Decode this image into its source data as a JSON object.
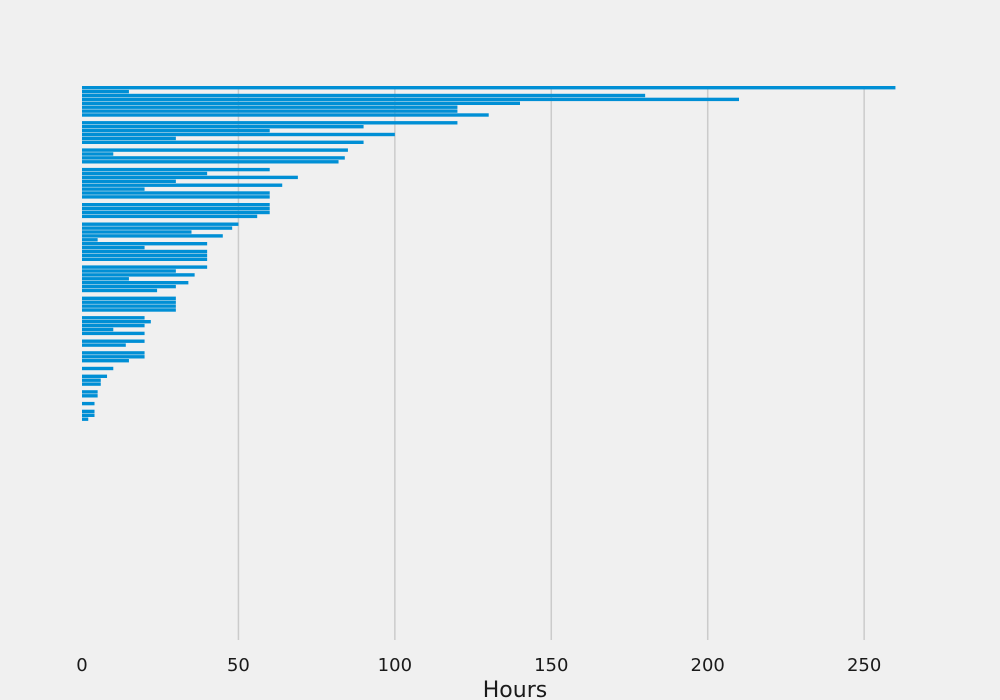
{
  "chart_data": {
    "type": "bar",
    "orientation": "horizontal",
    "title": "",
    "xlabel": "Hours",
    "ylabel": "",
    "xlim": [
      0,
      280
    ],
    "xticks": [
      0,
      50,
      100,
      150,
      200,
      250
    ],
    "grid": {
      "vertical": true,
      "horizontal": false
    },
    "legend": "none",
    "bar_color": "#008fd5",
    "background": "#f0f0f0",
    "grid_color": "#cbcbcb",
    "values": [
      260,
      15,
      180,
      210,
      140,
      120,
      120,
      130,
      0,
      120,
      90,
      60,
      100,
      30,
      90,
      0,
      85,
      10,
      84,
      82,
      0,
      60,
      40,
      69,
      30,
      64,
      20,
      60,
      60,
      0,
      60,
      60,
      60,
      56,
      0,
      50,
      48,
      35,
      45,
      5,
      40,
      20,
      40,
      40,
      40,
      0,
      40,
      30,
      36,
      15,
      34,
      30,
      24,
      0,
      30,
      30,
      30,
      30,
      0,
      20,
      22,
      20,
      10,
      20,
      0,
      20,
      14,
      0,
      20,
      20,
      15,
      0,
      10,
      0,
      8,
      6,
      6,
      0,
      5,
      5,
      0,
      4,
      0,
      4,
      4,
      2
    ]
  }
}
